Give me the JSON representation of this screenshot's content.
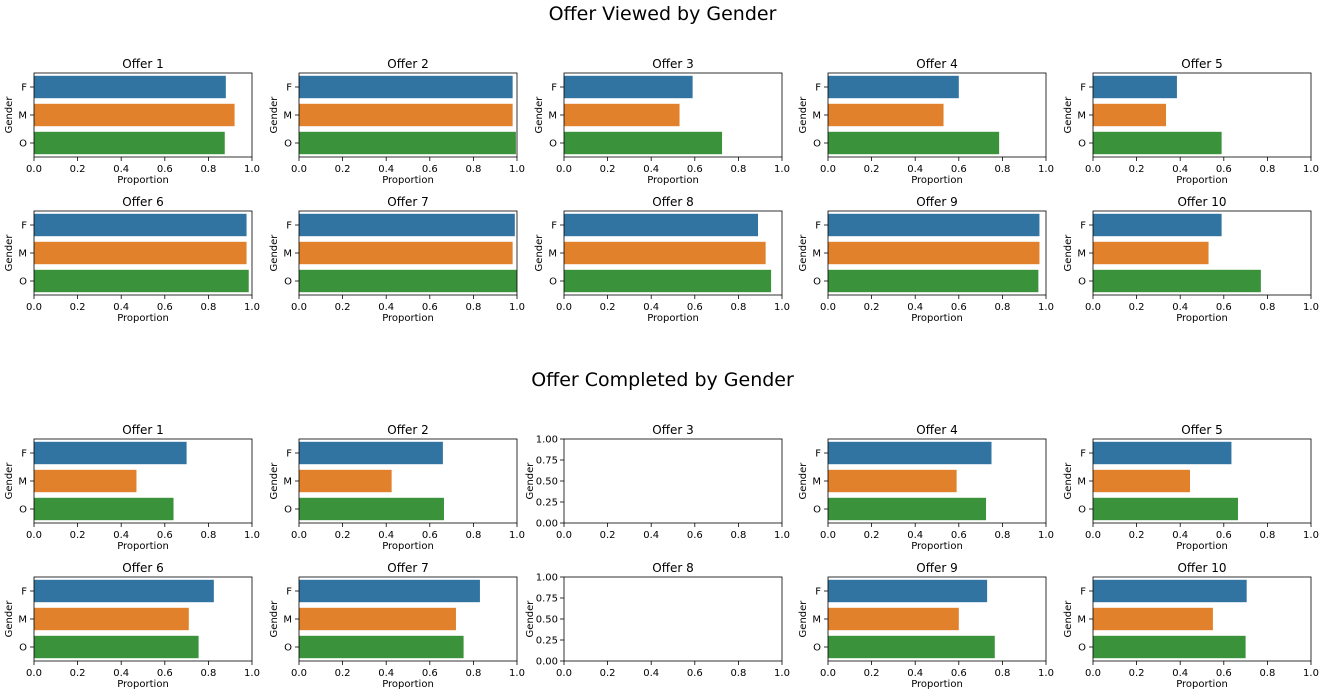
{
  "figure": {
    "viewed_title": "Offer Viewed by Gender",
    "completed_title": "Offer Completed by Gender",
    "colors": {
      "F": "#3274a1",
      "M": "#e1812c",
      "O": "#3a923a",
      "frame": "#000000"
    }
  },
  "chart_data": [
    {
      "group": "Offer Viewed by Gender",
      "panels": [
        {
          "type": "bar",
          "orientation": "horizontal",
          "title": "Offer 1",
          "xlabel": "Proportion",
          "ylabel": "Gender",
          "categories": [
            "F",
            "M",
            "O"
          ],
          "values": [
            0.88,
            0.92,
            0.875
          ],
          "xlim": [
            0,
            1
          ],
          "xticks": [
            "0.0",
            "0.2",
            "0.4",
            "0.6",
            "0.8",
            "1.0"
          ]
        },
        {
          "type": "bar",
          "orientation": "horizontal",
          "title": "Offer 2",
          "xlabel": "Proportion",
          "ylabel": "Gender",
          "categories": [
            "F",
            "M",
            "O"
          ],
          "values": [
            0.98,
            0.98,
            0.995
          ],
          "xlim": [
            0,
            1
          ],
          "xticks": [
            "0.0",
            "0.2",
            "0.4",
            "0.6",
            "0.8",
            "1.0"
          ]
        },
        {
          "type": "bar",
          "orientation": "horizontal",
          "title": "Offer 3",
          "xlabel": "Proportion",
          "ylabel": "Gender",
          "categories": [
            "F",
            "M",
            "O"
          ],
          "values": [
            0.59,
            0.53,
            0.725
          ],
          "xlim": [
            0,
            1
          ],
          "xticks": [
            "0.0",
            "0.2",
            "0.4",
            "0.6",
            "0.8",
            "1.0"
          ]
        },
        {
          "type": "bar",
          "orientation": "horizontal",
          "title": "Offer 4",
          "xlabel": "Proportion",
          "ylabel": "Gender",
          "categories": [
            "F",
            "M",
            "O"
          ],
          "values": [
            0.6,
            0.53,
            0.785
          ],
          "xlim": [
            0,
            1
          ],
          "xticks": [
            "0.0",
            "0.2",
            "0.4",
            "0.6",
            "0.8",
            "1.0"
          ]
        },
        {
          "type": "bar",
          "orientation": "horizontal",
          "title": "Offer 5",
          "xlabel": "Proportion",
          "ylabel": "Gender",
          "categories": [
            "F",
            "M",
            "O"
          ],
          "values": [
            0.385,
            0.335,
            0.59
          ],
          "xlim": [
            0,
            1
          ],
          "xticks": [
            "0.0",
            "0.2",
            "0.4",
            "0.6",
            "0.8",
            "1.0"
          ]
        },
        {
          "type": "bar",
          "orientation": "horizontal",
          "title": "Offer 6",
          "xlabel": "Proportion",
          "ylabel": "Gender",
          "categories": [
            "F",
            "M",
            "O"
          ],
          "values": [
            0.975,
            0.975,
            0.985
          ],
          "xlim": [
            0,
            1
          ],
          "xticks": [
            "0.0",
            "0.2",
            "0.4",
            "0.6",
            "0.8",
            "1.0"
          ]
        },
        {
          "type": "bar",
          "orientation": "horizontal",
          "title": "Offer 7",
          "xlabel": "Proportion",
          "ylabel": "Gender",
          "categories": [
            "F",
            "M",
            "O"
          ],
          "values": [
            0.99,
            0.98,
            1.0
          ],
          "xlim": [
            0,
            1
          ],
          "xticks": [
            "0.0",
            "0.2",
            "0.4",
            "0.6",
            "0.8",
            "1.0"
          ]
        },
        {
          "type": "bar",
          "orientation": "horizontal",
          "title": "Offer 8",
          "xlabel": "Proportion",
          "ylabel": "Gender",
          "categories": [
            "F",
            "M",
            "O"
          ],
          "values": [
            0.89,
            0.925,
            0.95
          ],
          "xlim": [
            0,
            1
          ],
          "xticks": [
            "0.0",
            "0.2",
            "0.4",
            "0.6",
            "0.8",
            "1.0"
          ]
        },
        {
          "type": "bar",
          "orientation": "horizontal",
          "title": "Offer 9",
          "xlabel": "Proportion",
          "ylabel": "Gender",
          "categories": [
            "F",
            "M",
            "O"
          ],
          "values": [
            0.97,
            0.97,
            0.965
          ],
          "xlim": [
            0,
            1
          ],
          "xticks": [
            "0.0",
            "0.2",
            "0.4",
            "0.6",
            "0.8",
            "1.0"
          ]
        },
        {
          "type": "bar",
          "orientation": "horizontal",
          "title": "Offer 10",
          "xlabel": "Proportion",
          "ylabel": "Gender",
          "categories": [
            "F",
            "M",
            "O"
          ],
          "values": [
            0.59,
            0.53,
            0.77
          ],
          "xlim": [
            0,
            1
          ],
          "xticks": [
            "0.0",
            "0.2",
            "0.4",
            "0.6",
            "0.8",
            "1.0"
          ]
        }
      ]
    },
    {
      "group": "Offer Completed by Gender",
      "panels": [
        {
          "type": "bar",
          "orientation": "horizontal",
          "title": "Offer 1",
          "xlabel": "Proportion",
          "ylabel": "Gender",
          "categories": [
            "F",
            "M",
            "O"
          ],
          "values": [
            0.7,
            0.47,
            0.64
          ],
          "xlim": [
            0,
            1
          ],
          "xticks": [
            "0.0",
            "0.2",
            "0.4",
            "0.6",
            "0.8",
            "1.0"
          ]
        },
        {
          "type": "bar",
          "orientation": "horizontal",
          "title": "Offer 2",
          "xlabel": "Proportion",
          "ylabel": "Gender",
          "categories": [
            "F",
            "M",
            "O"
          ],
          "values": [
            0.66,
            0.425,
            0.665
          ],
          "xlim": [
            0,
            1
          ],
          "xticks": [
            "0.0",
            "0.2",
            "0.4",
            "0.6",
            "0.8",
            "1.0"
          ]
        },
        {
          "type": "bar",
          "orientation": "horizontal",
          "title": "Offer 3",
          "xlabel": "",
          "ylabel": "Gender",
          "categories": [],
          "values": [],
          "empty": true,
          "xlim": [
            0,
            1
          ],
          "ylim": [
            0,
            1
          ],
          "xticks": [
            "0.0",
            "0.2",
            "0.4",
            "0.6",
            "0.8",
            "1.0"
          ],
          "yticks": [
            "0.00",
            "0.25",
            "0.50",
            "0.75",
            "1.00"
          ]
        },
        {
          "type": "bar",
          "orientation": "horizontal",
          "title": "Offer 4",
          "xlabel": "Proportion",
          "ylabel": "Gender",
          "categories": [
            "F",
            "M",
            "O"
          ],
          "values": [
            0.75,
            0.59,
            0.725
          ],
          "xlim": [
            0,
            1
          ],
          "xticks": [
            "0.0",
            "0.2",
            "0.4",
            "0.6",
            "0.8",
            "1.0"
          ]
        },
        {
          "type": "bar",
          "orientation": "horizontal",
          "title": "Offer 5",
          "xlabel": "Proportion",
          "ylabel": "Gender",
          "categories": [
            "F",
            "M",
            "O"
          ],
          "values": [
            0.635,
            0.445,
            0.665
          ],
          "xlim": [
            0,
            1
          ],
          "xticks": [
            "0.0",
            "0.2",
            "0.4",
            "0.6",
            "0.8",
            "1.0"
          ]
        },
        {
          "type": "bar",
          "orientation": "horizontal",
          "title": "Offer 6",
          "xlabel": "Proportion",
          "ylabel": "Gender",
          "categories": [
            "F",
            "M",
            "O"
          ],
          "values": [
            0.825,
            0.71,
            0.755
          ],
          "xlim": [
            0,
            1
          ],
          "xticks": [
            "0.0",
            "0.2",
            "0.4",
            "0.6",
            "0.8",
            "1.0"
          ]
        },
        {
          "type": "bar",
          "orientation": "horizontal",
          "title": "Offer 7",
          "xlabel": "Proportion",
          "ylabel": "Gender",
          "categories": [
            "F",
            "M",
            "O"
          ],
          "values": [
            0.83,
            0.72,
            0.755
          ],
          "xlim": [
            0,
            1
          ],
          "xticks": [
            "0.0",
            "0.2",
            "0.4",
            "0.6",
            "0.8",
            "1.0"
          ]
        },
        {
          "type": "bar",
          "orientation": "horizontal",
          "title": "Offer 8",
          "xlabel": "",
          "ylabel": "Gender",
          "categories": [],
          "values": [],
          "empty": true,
          "xlim": [
            0,
            1
          ],
          "ylim": [
            0,
            1
          ],
          "xticks": [
            "0.0",
            "0.2",
            "0.4",
            "0.6",
            "0.8",
            "1.0"
          ],
          "yticks": [
            "0.00",
            "0.25",
            "0.50",
            "0.75",
            "1.00"
          ]
        },
        {
          "type": "bar",
          "orientation": "horizontal",
          "title": "Offer 9",
          "xlabel": "Proportion",
          "ylabel": "Gender",
          "categories": [
            "F",
            "M",
            "O"
          ],
          "values": [
            0.73,
            0.6,
            0.765
          ],
          "xlim": [
            0,
            1
          ],
          "xticks": [
            "0.0",
            "0.2",
            "0.4",
            "0.6",
            "0.8",
            "1.0"
          ]
        },
        {
          "type": "bar",
          "orientation": "horizontal",
          "title": "Offer 10",
          "xlabel": "Proportion",
          "ylabel": "Gender",
          "categories": [
            "F",
            "M",
            "O"
          ],
          "values": [
            0.705,
            0.55,
            0.7
          ],
          "xlim": [
            0,
            1
          ],
          "xticks": [
            "0.0",
            "0.2",
            "0.4",
            "0.6",
            "0.8",
            "1.0"
          ]
        }
      ]
    }
  ]
}
